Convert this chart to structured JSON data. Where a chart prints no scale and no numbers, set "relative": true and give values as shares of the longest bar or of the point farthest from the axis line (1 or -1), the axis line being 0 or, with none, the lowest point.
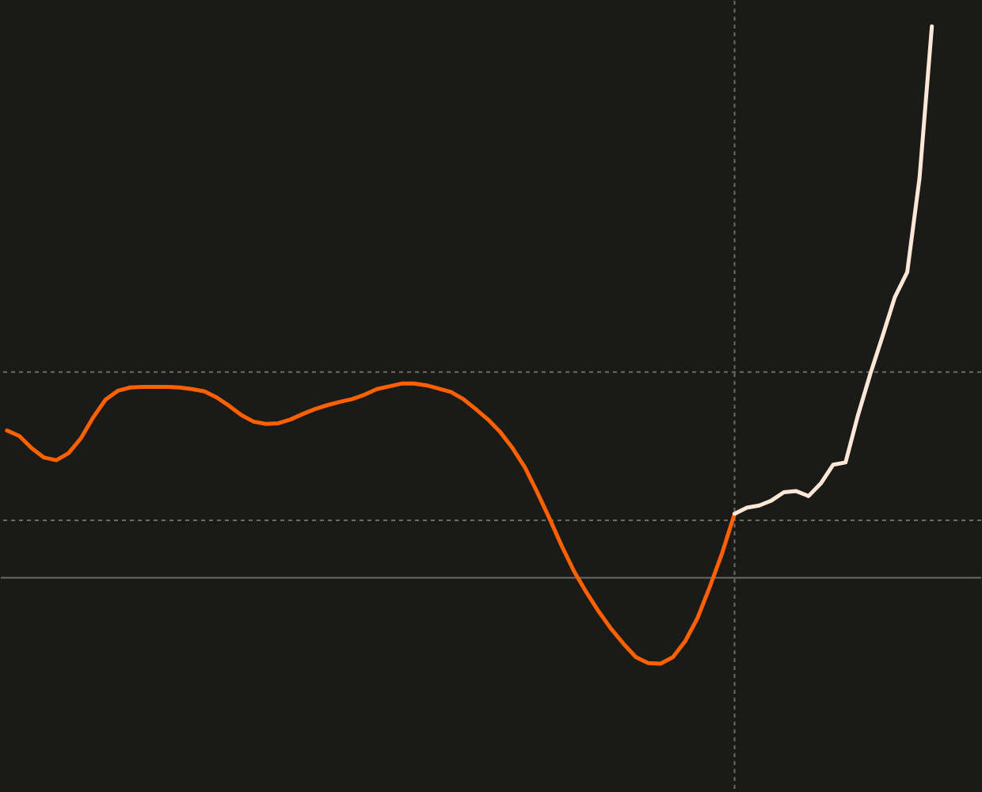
{
  "chart_data": {
    "type": "line",
    "relative": true,
    "line_style": "solid",
    "marker": "none",
    "categories": [
      null,
      null,
      null,
      null,
      null,
      null,
      null,
      null,
      null,
      null,
      null,
      null,
      null,
      null,
      null,
      null,
      null,
      null,
      null,
      null,
      null,
      null,
      null,
      null,
      null,
      null,
      null,
      null,
      null,
      null,
      null,
      null,
      null,
      null,
      null,
      null,
      null,
      null,
      null,
      null,
      null,
      null,
      null,
      null,
      null,
      null,
      null,
      null,
      null,
      null,
      null,
      null,
      null,
      null,
      null,
      null,
      null,
      null,
      null,
      null,
      null,
      null,
      null,
      null,
      null,
      null,
      null,
      null,
      null,
      null,
      null,
      null,
      null,
      null,
      null,
      null
    ],
    "series": [
      {
        "color": "#ff6000",
        "values": [
          0.267,
          0.257,
          0.235,
          0.218,
          0.213,
          0.226,
          0.253,
          0.291,
          0.323,
          0.339,
          0.345,
          0.346,
          0.346,
          0.346,
          0.345,
          0.342,
          0.338,
          0.327,
          0.312,
          0.295,
          0.283,
          0.279,
          0.28,
          0.287,
          0.297,
          0.306,
          0.313,
          0.319,
          0.324,
          0.332,
          0.342,
          0.347,
          0.352,
          0.352,
          0.349,
          0.343,
          0.337,
          0.324,
          0.306,
          0.287,
          0.264,
          0.235,
          0.2,
          0.155,
          0.107,
          0.057,
          0.011,
          -0.027,
          -0.062,
          -0.093,
          -0.12,
          -0.144,
          -0.155,
          -0.156,
          -0.144,
          -0.115,
          -0.073,
          -0.016,
          0.045,
          0.116,
          null,
          null,
          null,
          null,
          null,
          null,
          null,
          null,
          null,
          null,
          null,
          null,
          null,
          null,
          null,
          null
        ]
      },
      {
        "color": "#fde8d8",
        "values": [
          null,
          null,
          null,
          null,
          null,
          null,
          null,
          null,
          null,
          null,
          null,
          null,
          null,
          null,
          null,
          null,
          null,
          null,
          null,
          null,
          null,
          null,
          null,
          null,
          null,
          null,
          null,
          null,
          null,
          null,
          null,
          null,
          null,
          null,
          null,
          null,
          null,
          null,
          null,
          null,
          null,
          null,
          null,
          null,
          null,
          null,
          null,
          null,
          null,
          null,
          null,
          null,
          null,
          null,
          null,
          null,
          null,
          null,
          null,
          0.116,
          0.127,
          0.131,
          0.14,
          0.155,
          0.157,
          0.148,
          0.171,
          0.205,
          0.209,
          0.294,
          0.369,
          0.438,
          0.509,
          0.554,
          0.725,
          1.0
        ]
      }
    ],
    "ref_lines": [
      {
        "axis": "y",
        "value": 0,
        "color": "#6b6b6b",
        "line_style": "solid"
      },
      {
        "axis": "y",
        "value": 0.373,
        "color": "#6b6b6b",
        "line_style": "dashed"
      },
      {
        "axis": "y",
        "value": 0.104,
        "color": "#6b6b6b",
        "line_style": "dashed"
      }
    ]
  }
}
